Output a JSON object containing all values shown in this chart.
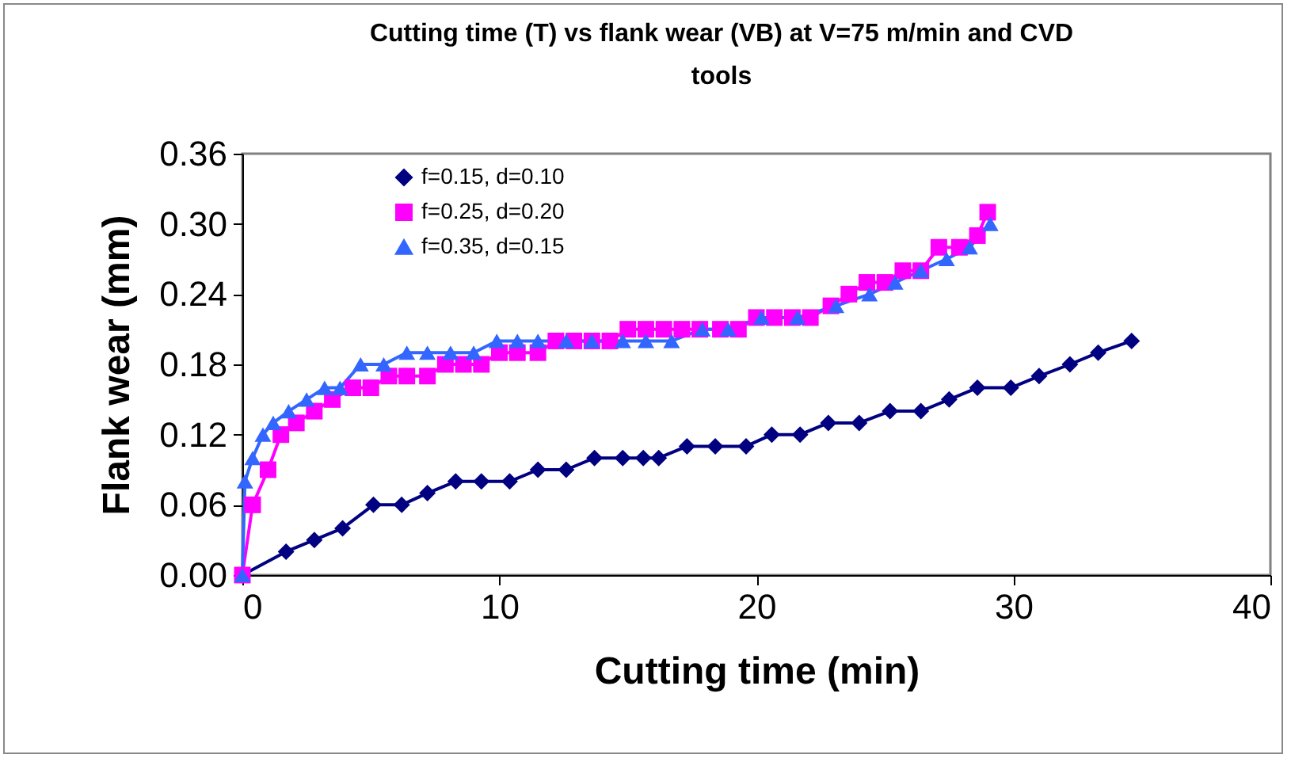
{
  "chart_data": {
    "type": "line",
    "title": "Cutting time (T) vs flank wear (VB) at V=75 m/min and CVD tools",
    "xlabel": "Cutting time (min)",
    "ylabel": "Flank wear (mm)",
    "xlim": [
      0,
      40
    ],
    "xticks": [
      0,
      10,
      20,
      30,
      40
    ],
    "ylim": [
      0,
      0.36
    ],
    "yticks": [
      {
        "value": 0,
        "label": "0.00"
      },
      {
        "value": 0.06,
        "label": "0.06"
      },
      {
        "value": 0.12,
        "label": "0.12"
      },
      {
        "value": 0.18,
        "label": "0.18"
      },
      {
        "value": 0.24,
        "label": "0.24"
      },
      {
        "value": 0.3,
        "label": "0.30"
      },
      {
        "value": 0.36,
        "label": "0.36"
      }
    ],
    "grid": false,
    "legend": "top left",
    "line_style": "solid",
    "series": [
      {
        "name": "f=0.15, d=0.10",
        "color": "#000080",
        "marker": "diamond",
        "x": [
          0,
          1.7,
          2.8,
          3.9,
          5.1,
          6.2,
          7.2,
          8.3,
          9.3,
          10.4,
          11.5,
          12.6,
          13.7,
          14.8,
          15.6,
          16.2,
          17.3,
          18.4,
          19.6,
          20.6,
          21.7,
          22.8,
          24.0,
          25.2,
          26.4,
          27.5,
          28.6,
          29.9,
          31.0,
          32.2,
          33.3,
          34.6
        ],
        "values": [
          0,
          0.02,
          0.03,
          0.04,
          0.06,
          0.06,
          0.07,
          0.08,
          0.08,
          0.08,
          0.09,
          0.09,
          0.1,
          0.1,
          0.1,
          0.1,
          0.11,
          0.11,
          0.11,
          0.12,
          0.12,
          0.13,
          0.13,
          0.14,
          0.14,
          0.15,
          0.16,
          0.16,
          0.17,
          0.18,
          0.19,
          0.2
        ]
      },
      {
        "name": "f=0.25, d=0.20",
        "color": "#ff00ff",
        "marker": "square",
        "x": [
          0,
          0.4,
          1.0,
          1.5,
          2.1,
          2.8,
          3.5,
          4.3,
          5.0,
          5.7,
          6.4,
          7.2,
          7.9,
          8.6,
          9.3,
          10.0,
          10.7,
          11.5,
          12.2,
          12.9,
          13.6,
          14.3,
          15.0,
          15.7,
          16.4,
          17.1,
          17.8,
          18.6,
          19.3,
          20.0,
          20.7,
          21.4,
          22.1,
          22.9,
          23.6,
          24.3,
          25.0,
          25.7,
          26.4,
          27.1,
          27.9,
          28.6,
          29.0
        ],
        "values": [
          0,
          0.06,
          0.09,
          0.12,
          0.13,
          0.14,
          0.15,
          0.16,
          0.16,
          0.17,
          0.17,
          0.17,
          0.18,
          0.18,
          0.18,
          0.19,
          0.19,
          0.19,
          0.2,
          0.2,
          0.2,
          0.2,
          0.21,
          0.21,
          0.21,
          0.21,
          0.21,
          0.21,
          0.21,
          0.22,
          0.22,
          0.22,
          0.22,
          0.23,
          0.24,
          0.25,
          0.25,
          0.26,
          0.26,
          0.28,
          0.28,
          0.29,
          0.31
        ]
      },
      {
        "name": "f=0.35, d=0.15",
        "color": "#3366ff",
        "marker": "triangle",
        "x": [
          0,
          0.1,
          0.4,
          0.8,
          1.2,
          1.8,
          2.5,
          3.2,
          3.8,
          4.6,
          5.5,
          6.4,
          7.2,
          8.1,
          9.0,
          9.9,
          10.7,
          11.5,
          12.6,
          13.6,
          14.8,
          15.7,
          16.7,
          17.9,
          18.9,
          20.2,
          21.6,
          23.1,
          24.4,
          25.4,
          26.4,
          27.4,
          28.3,
          29.1
        ],
        "values": [
          0,
          0.08,
          0.1,
          0.12,
          0.13,
          0.14,
          0.15,
          0.16,
          0.16,
          0.18,
          0.18,
          0.19,
          0.19,
          0.19,
          0.19,
          0.2,
          0.2,
          0.2,
          0.2,
          0.2,
          0.2,
          0.2,
          0.2,
          0.21,
          0.21,
          0.22,
          0.22,
          0.23,
          0.24,
          0.25,
          0.26,
          0.27,
          0.28,
          0.3
        ]
      }
    ]
  }
}
